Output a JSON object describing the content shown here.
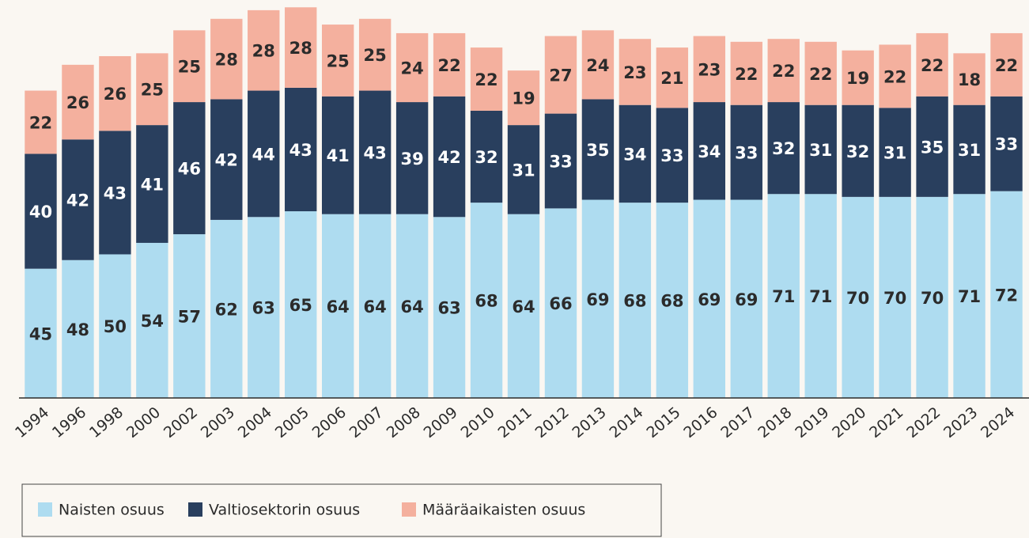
{
  "chart_data": {
    "type": "stacked_bar",
    "categories": [
      "1994",
      "1996",
      "1998",
      "2000",
      "2002",
      "2003",
      "2004",
      "2005",
      "2006",
      "2007",
      "2008",
      "2009",
      "2010",
      "2011",
      "2012",
      "2013",
      "2014",
      "2015",
      "2016",
      "2017",
      "2018",
      "2019",
      "2020",
      "2021",
      "2022",
      "2023",
      "2024"
    ],
    "series": [
      {
        "name": "Naisten osuus",
        "color": "#aedcf0",
        "values": [
          45,
          48,
          50,
          54,
          57,
          62,
          63,
          65,
          64,
          64,
          64,
          63,
          68,
          64,
          66,
          69,
          68,
          68,
          69,
          69,
          71,
          71,
          70,
          70,
          70,
          71,
          72
        ]
      },
      {
        "name": "Valtiosektorin osuus",
        "color": "#293f5e",
        "values": [
          40,
          42,
          43,
          41,
          46,
          42,
          44,
          43,
          41,
          43,
          39,
          42,
          32,
          31,
          33,
          35,
          34,
          33,
          34,
          33,
          32,
          31,
          32,
          31,
          35,
          31,
          33
        ]
      },
      {
        "name": "Määräaikaisten osuus",
        "color": "#f4b09e",
        "values": [
          22,
          26,
          26,
          25,
          25,
          28,
          28,
          28,
          25,
          25,
          24,
          22,
          22,
          19,
          27,
          24,
          23,
          21,
          23,
          22,
          22,
          22,
          19,
          22,
          22,
          18,
          22
        ]
      }
    ],
    "ylim": [
      0,
      138
    ],
    "legend": "bottom-left"
  }
}
